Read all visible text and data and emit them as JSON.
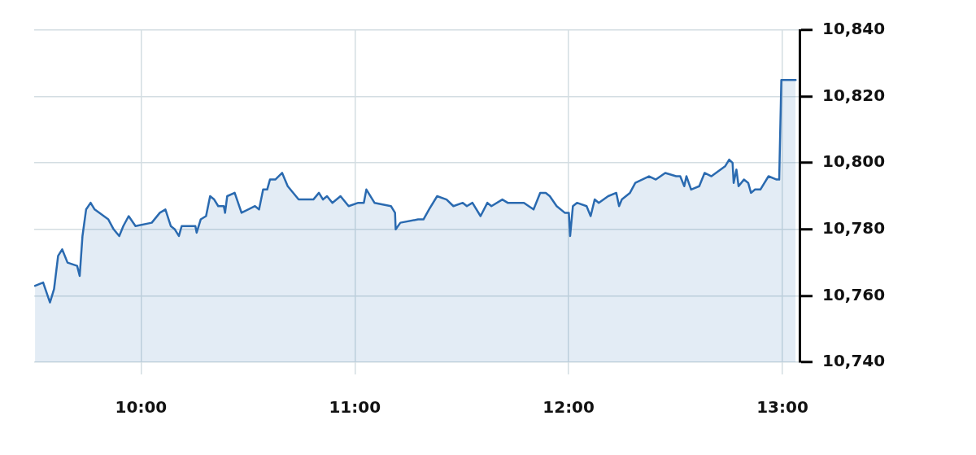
{
  "chart_data": {
    "type": "area",
    "color": "#2a6ab0",
    "marker": "none",
    "legend": false,
    "grid": true,
    "xlim": [
      9.5,
      13.08
    ],
    "xticks": [
      {
        "value": 10,
        "label": "10:00"
      },
      {
        "value": 11,
        "label": "11:00"
      },
      {
        "value": 12,
        "label": "12:00"
      },
      {
        "value": 13,
        "label": "13:00"
      }
    ],
    "ylim": [
      10740,
      10840
    ],
    "yticks": [
      {
        "value": 10740,
        "label": "10,740"
      },
      {
        "value": 10760,
        "label": "10,760"
      },
      {
        "value": 10780,
        "label": "10,780"
      },
      {
        "value": 10800,
        "label": "10,800"
      },
      {
        "value": 10820,
        "label": "10,820"
      },
      {
        "value": 10840,
        "label": "10,840"
      }
    ],
    "x": [
      9.504,
      9.542,
      9.574,
      9.593,
      9.612,
      9.631,
      9.656,
      9.701,
      9.713,
      9.726,
      9.743,
      9.764,
      9.783,
      9.847,
      9.872,
      9.898,
      9.917,
      9.942,
      9.974,
      10.05,
      10.088,
      10.114,
      10.139,
      10.158,
      10.177,
      10.19,
      10.254,
      10.26,
      10.279,
      10.304,
      10.323,
      10.342,
      10.361,
      10.387,
      10.393,
      10.403,
      10.438,
      10.47,
      10.533,
      10.552,
      10.571,
      10.59,
      10.603,
      10.628,
      10.66,
      10.686,
      10.737,
      10.806,
      10.832,
      10.851,
      10.87,
      10.895,
      10.933,
      10.971,
      11.016,
      11.042,
      11.054,
      11.092,
      11.169,
      11.188,
      11.191,
      11.213,
      11.296,
      11.321,
      11.347,
      11.385,
      11.429,
      11.461,
      11.505,
      11.524,
      11.55,
      11.588,
      11.62,
      11.639,
      11.69,
      11.715,
      11.74,
      11.791,
      11.836,
      11.867,
      11.893,
      11.912,
      11.944,
      11.982,
      12.001,
      12.007,
      12.02,
      12.039,
      12.084,
      12.103,
      12.122,
      12.141,
      12.185,
      12.223,
      12.236,
      12.249,
      12.287,
      12.312,
      12.376,
      12.408,
      12.452,
      12.503,
      12.522,
      12.541,
      12.551,
      12.573,
      12.611,
      12.636,
      12.668,
      12.732,
      12.751,
      12.767,
      12.772,
      12.785,
      12.795,
      12.82,
      12.84,
      12.853,
      12.872,
      12.897,
      12.935,
      12.973,
      12.985,
      12.995,
      13.062
    ],
    "values": [
      10763,
      10764,
      10758,
      10762,
      10772,
      10774,
      10770,
      10769,
      10766,
      10778,
      10786,
      10788,
      10786,
      10783,
      10780,
      10778,
      10781,
      10784,
      10781,
      10782,
      10785,
      10786,
      10781,
      10780,
      10778,
      10781,
      10781,
      10779,
      10783,
      10784,
      10790,
      10789,
      10787,
      10787,
      10785,
      10790,
      10791,
      10785,
      10787,
      10786,
      10792,
      10792,
      10795,
      10795,
      10797,
      10793,
      10789,
      10789,
      10791,
      10789,
      10790,
      10788,
      10790,
      10787,
      10788,
      10788,
      10792,
      10788,
      10787,
      10785,
      10780,
      10782,
      10783,
      10783,
      10786,
      10790,
      10789,
      10787,
      10788,
      10787,
      10788,
      10784,
      10788,
      10787,
      10789,
      10788,
      10788,
      10788,
      10786,
      10791,
      10791,
      10790,
      10787,
      10785,
      10785,
      10778,
      10787,
      10788,
      10787,
      10784,
      10789,
      10788,
      10790,
      10791,
      10787,
      10789,
      10791,
      10794,
      10796,
      10795,
      10797,
      10796,
      10796,
      10793,
      10796,
      10792,
      10793,
      10797,
      10796,
      10799,
      10801,
      10800,
      10794,
      10798,
      10793,
      10795,
      10794,
      10791,
      10792,
      10792,
      10796,
      10795,
      10795,
      10825,
      10825
    ]
  }
}
